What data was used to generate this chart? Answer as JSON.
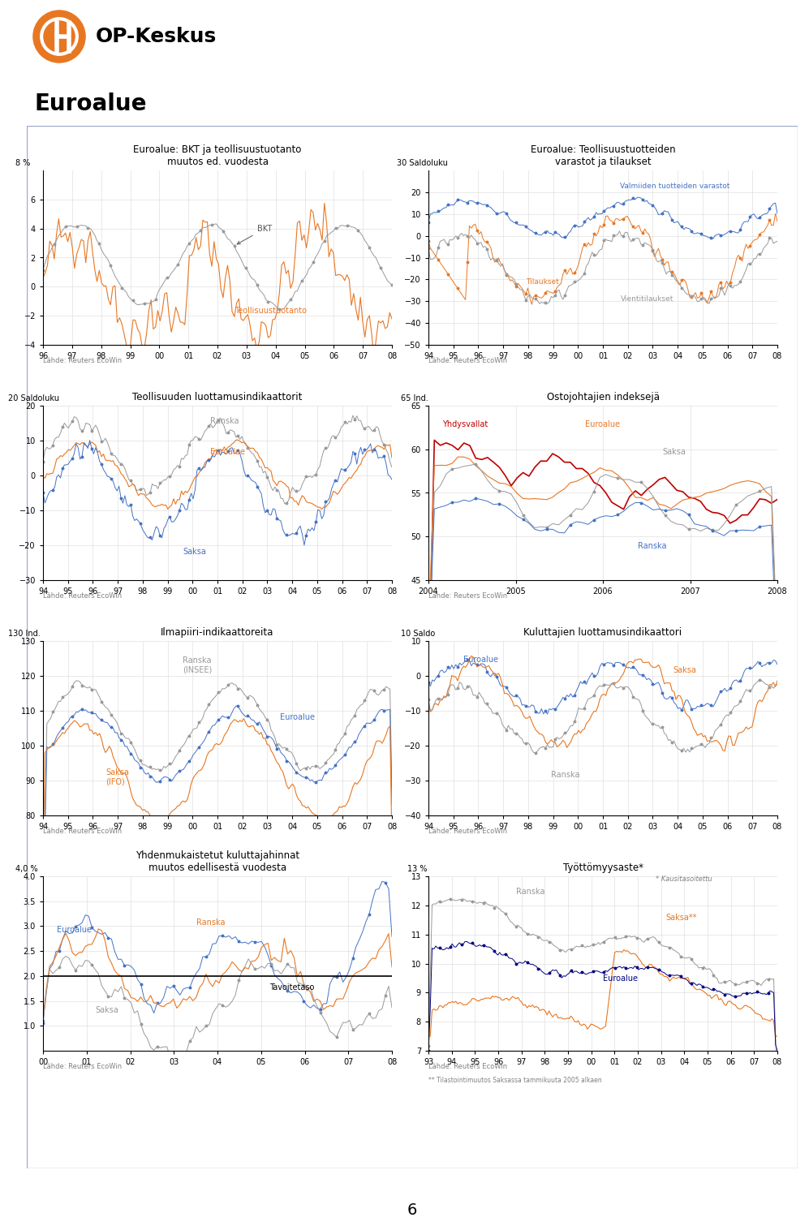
{
  "title_main": "Euroalue",
  "header_bg": "#9eaac8",
  "logo_color": "#e87722",
  "company": "OP-Keskus",
  "source_text": "Lähde: Reuters EcoWin",
  "page_number": "6",
  "charts": {
    "bkt": {
      "title": "Euroalue: BKT ja teollisuustuotanto",
      "subtitle": "muutos ed. vuodesta",
      "ylim": [
        -4,
        8
      ],
      "yticks": [
        -4,
        -2,
        0,
        2,
        4,
        6,
        8
      ],
      "ylabel_top": "8 %",
      "xticks": [
        "96",
        "97",
        "98",
        "99",
        "00",
        "01",
        "02",
        "03",
        "04",
        "05",
        "06",
        "07",
        "08"
      ],
      "bkt_label": "BKT",
      "teoll_label": "Teollisuustuotanto",
      "bkt_color": "#999999",
      "teoll_color": "#e87722"
    },
    "varastot": {
      "title": "Euroalue: Teollisuustuotteiden",
      "title2": "varastot ja tilaukset",
      "ylim": [
        -50,
        30
      ],
      "yticks": [
        -50,
        -40,
        -30,
        -20,
        -10,
        0,
        10,
        20,
        30
      ],
      "ylabel_top": "30 Saldoluku",
      "xticks": [
        "94",
        "95",
        "96",
        "97",
        "98",
        "99",
        "00",
        "01",
        "02",
        "03",
        "04",
        "05",
        "06",
        "07",
        "08"
      ],
      "varastot_label": "Valmiiden tuotteiden varastot",
      "tilaukset_label": "Tilaukset",
      "vienti_label": "Vientitilaukset",
      "varastot_color": "#4472c4",
      "tilaukset_color": "#e87722",
      "vienti_color": "#999999"
    },
    "luottamus": {
      "title": "Teollisuuden luottamusindikaattorit",
      "ylim": [
        -30,
        20
      ],
      "yticks": [
        -30,
        -20,
        -10,
        0,
        10,
        20
      ],
      "ylabel_top": "20 Saldoluku",
      "xticks": [
        "94",
        "95",
        "96",
        "97",
        "98",
        "99",
        "00",
        "01",
        "02",
        "03",
        "04",
        "05",
        "06",
        "07",
        "08"
      ],
      "ranska_label": "Ranska",
      "euroalue_label": "Euroalue",
      "saksa_label": "Saksa",
      "ranska_color": "#999999",
      "euroalue_color": "#e87722",
      "saksa_color": "#4472c4"
    },
    "ostojohtajat": {
      "title": "Ostojohtajien indeksejä",
      "ylim": [
        45,
        65
      ],
      "yticks": [
        45,
        50,
        55,
        60,
        65
      ],
      "ylabel_top": "65 Ind.",
      "xticks": [
        "2004",
        "2005",
        "2006",
        "2007",
        "2008"
      ],
      "yhdysvallat_label": "Yhdysvallat",
      "euroalue_label": "Euroalue",
      "saksa_label": "Saksa",
      "ranska_label": "Ranska",
      "yhdysvallat_color": "#c00000",
      "euroalue_color": "#e87722",
      "saksa_color": "#999999",
      "ranska_color": "#4472c4"
    },
    "ilmapiiri": {
      "title": "Ilmapiiri-indikaattoreita",
      "ylim": [
        80,
        130
      ],
      "yticks": [
        80,
        90,
        100,
        110,
        120,
        130
      ],
      "ylabel_top": "130 Ind.",
      "xticks": [
        "94",
        "95",
        "96",
        "97",
        "98",
        "99",
        "00",
        "01",
        "02",
        "03",
        "04",
        "05",
        "06",
        "07",
        "08"
      ],
      "ranska_label": "Ranska\n(INSEE)",
      "euroalue_label": "Euroalue",
      "saksa_label": "Saksa\n(IFO)",
      "ranska_color": "#999999",
      "euroalue_color": "#4472c4",
      "saksa_color": "#e87722"
    },
    "kuluttajat": {
      "title": "Kuluttajien luottamusindikaattori",
      "ylim": [
        -40,
        10
      ],
      "yticks": [
        -40,
        -30,
        -20,
        -10,
        0,
        10
      ],
      "ylabel_top": "10 Saldo",
      "xticks": [
        "94",
        "95",
        "96",
        "97",
        "98",
        "99",
        "00",
        "01",
        "02",
        "03",
        "04",
        "05",
        "06",
        "07",
        "08"
      ],
      "euroalue_label": "Euroalue",
      "saksa_label": "Saksa",
      "ranska_label": "Ranska",
      "euroalue_color": "#4472c4",
      "saksa_color": "#e87722",
      "ranska_color": "#999999"
    },
    "kuluttajahinnat": {
      "title": "Yhdenmukaistetut kuluttajahinnat",
      "subtitle": "muutos edellisestä vuodesta",
      "ylim": [
        0.5,
        4.0
      ],
      "yticks": [
        0.5,
        1.0,
        1.5,
        2.0,
        2.5,
        3.0,
        3.5,
        4.0
      ],
      "ylabel_top": "4,0 %",
      "xticks": [
        "00",
        "01",
        "02",
        "03",
        "04",
        "05",
        "06",
        "07",
        "08"
      ],
      "euroalue_label": "Euroalue",
      "ranska_label": "Ranska",
      "saksa_label": "Saksa",
      "tavoitetaso_label": "Tavoitetaso",
      "euroalue_color": "#4472c4",
      "ranska_color": "#e87722",
      "saksa_color": "#999999",
      "tavoitetaso_color": "#000000"
    },
    "tyottomyys": {
      "title": "Työttömyysaste*",
      "ylim": [
        7,
        13
      ],
      "yticks": [
        7,
        8,
        9,
        10,
        11,
        12,
        13
      ],
      "ylabel_top": "13 %",
      "xticks": [
        "93",
        "94",
        "95",
        "96",
        "97",
        "98",
        "99",
        "00",
        "01",
        "02",
        "03",
        "04",
        "05",
        "06",
        "07",
        "08"
      ],
      "ranska_label": "Ranska",
      "saksa_label": "Saksa**",
      "euroalue_label": "Euroalue",
      "ranska_color": "#999999",
      "saksa_color": "#e87722",
      "euroalue_color": "#000080",
      "note1": "* Kausitasoitettu",
      "note2": "** Tilastointimuutos Saksassa tammikuuta 2005 alkaen"
    }
  }
}
